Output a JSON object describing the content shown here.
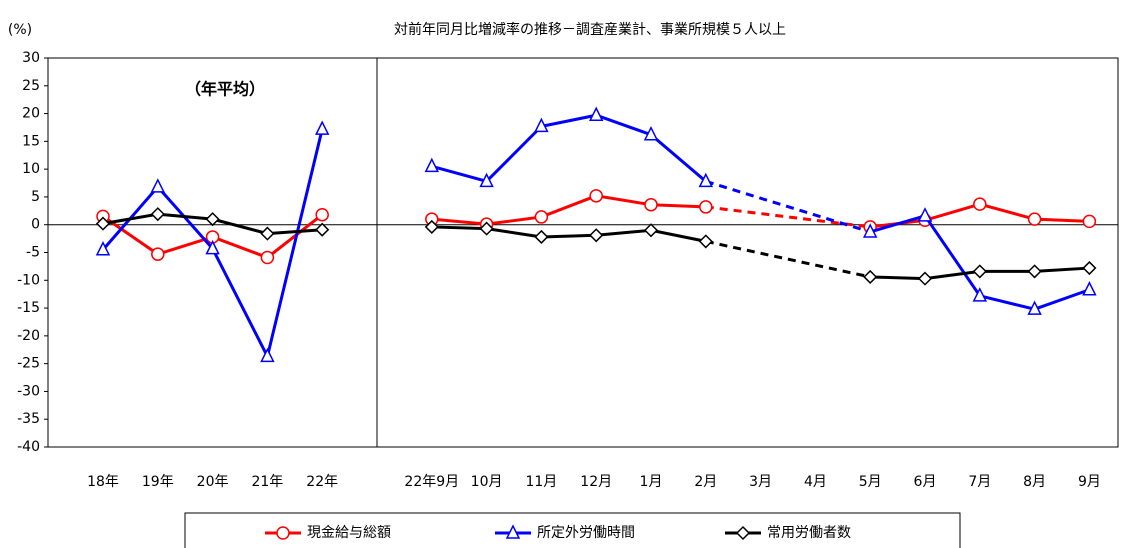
{
  "chart_data": {
    "type": "line",
    "title": "対前年同月比増減率の推移－調査産業計、事業所規模５人以上",
    "y_label": "(%)",
    "annotation": "（年平均）",
    "categories": [
      "18年",
      "19年",
      "20年",
      "21年",
      "22年",
      null,
      "22年9月",
      "10月",
      "11月",
      "12月",
      "1月",
      "2月",
      "3月",
      "4月",
      "5月",
      "6月",
      "7月",
      "8月",
      "9月"
    ],
    "series": [
      {
        "name": "現金給与総額",
        "color": "#ff0000",
        "marker": "circle",
        "values": [
          1.5,
          -5.3,
          -2.2,
          -5.9,
          1.8,
          null,
          1.0,
          0.1,
          1.4,
          5.2,
          3.6,
          3.2,
          null,
          null,
          -0.4,
          0.8,
          3.7,
          1.0,
          0.6
        ]
      },
      {
        "name": "所定外労働時間",
        "color": "#0000ff",
        "marker": "triangle",
        "values": [
          -4.5,
          6.8,
          -4.3,
          -23.7,
          17.2,
          null,
          10.5,
          7.8,
          17.7,
          19.7,
          16.2,
          7.8,
          null,
          null,
          -1.3,
          1.6,
          -12.8,
          -15.2,
          -11.7
        ]
      },
      {
        "name": "常用労働者数",
        "color": "#000000",
        "marker": "diamond",
        "values": [
          0.2,
          1.9,
          1.0,
          -1.6,
          -0.9,
          null,
          -0.4,
          -0.7,
          -2.2,
          -1.9,
          -1.0,
          -3.0,
          null,
          null,
          -9.4,
          -9.7,
          -8.4,
          -8.4,
          -7.8
        ]
      }
    ],
    "ylim": [
      -40,
      30
    ],
    "yticks": [
      -40,
      -35,
      -30,
      -25,
      -20,
      -15,
      -10,
      -5,
      0,
      5,
      10,
      15,
      20,
      25,
      30
    ]
  }
}
